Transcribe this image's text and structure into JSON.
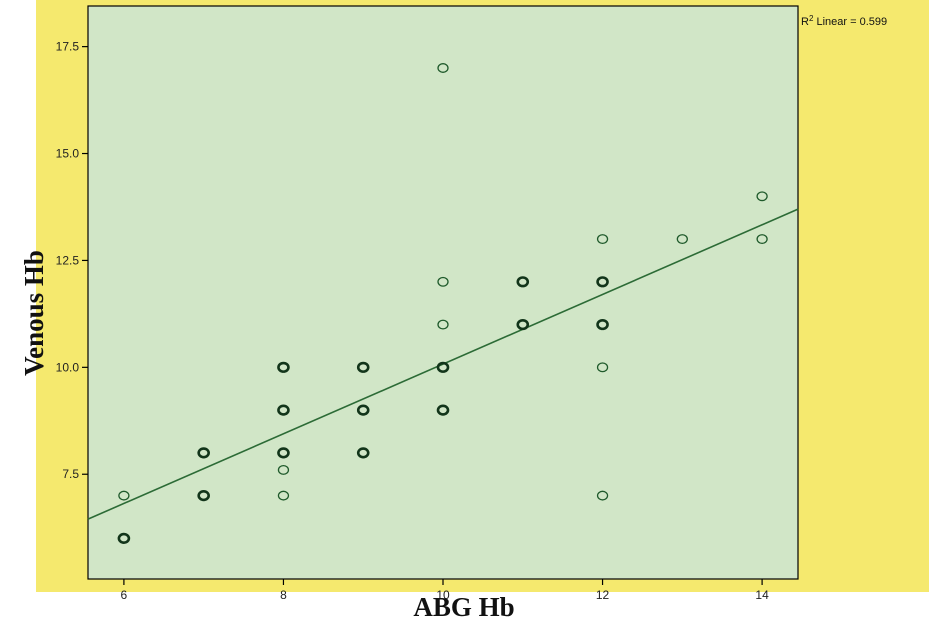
{
  "chart_data": {
    "type": "scatter",
    "title": "",
    "xlabel": "ABG Hb",
    "ylabel": "Venous Hb",
    "xlim": [
      5.55,
      14.45
    ],
    "ylim": [
      5.05,
      18.45
    ],
    "x_ticks": [
      6,
      8,
      10,
      12,
      14
    ],
    "y_ticks": [
      7.5,
      10.0,
      12.5,
      15.0,
      17.5
    ],
    "x_tick_labels": [
      "6",
      "8",
      "10",
      "12",
      "14"
    ],
    "y_tick_labels": [
      "7.5",
      "10.0",
      "12.5",
      "15.0",
      "17.5"
    ],
    "grid": false,
    "series": [
      {
        "x": [
          6,
          6,
          7,
          7,
          8,
          8,
          8,
          8,
          8,
          9,
          9,
          9,
          10,
          10,
          10,
          10,
          10,
          11,
          11,
          12,
          12,
          12,
          12,
          12,
          13,
          14,
          14
        ],
        "y": [
          6,
          7,
          7,
          8,
          7,
          7.6,
          8,
          9,
          10,
          8,
          9,
          10,
          9,
          10,
          11,
          12,
          17,
          11,
          12,
          7,
          10,
          11,
          12,
          13,
          13,
          13,
          14
        ],
        "bold": [
          1,
          0,
          1,
          1,
          0,
          0,
          1,
          1,
          1,
          1,
          1,
          1,
          1,
          1,
          0,
          0,
          0,
          1,
          1,
          0,
          0,
          1,
          1,
          0,
          0,
          0,
          0
        ]
      }
    ],
    "fit_line": {
      "type": "linear",
      "x": [
        5.55,
        14.45
      ],
      "y": [
        6.45,
        13.7
      ],
      "label": "R² Linear = 0.599"
    },
    "colors": {
      "background": "#f5e96e",
      "plot_area": "#d1e6c7",
      "marker": "#1f5a2b",
      "fit_line": "#2c6b36",
      "frame": "#000000"
    }
  }
}
